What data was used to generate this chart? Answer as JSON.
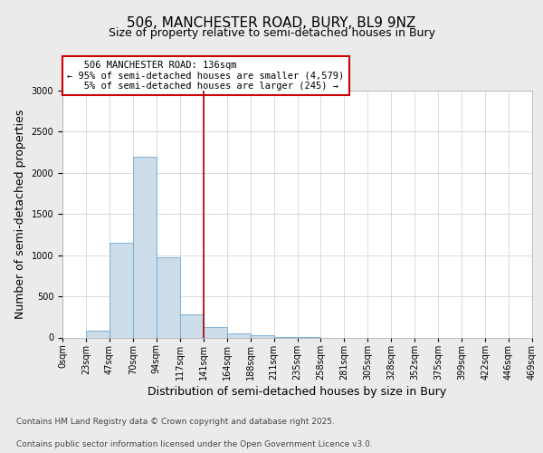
{
  "title": "506, MANCHESTER ROAD, BURY, BL9 9NZ",
  "subtitle": "Size of property relative to semi-detached houses in Bury",
  "xlabel": "Distribution of semi-detached houses by size in Bury",
  "ylabel": "Number of semi-detached properties",
  "footnote1": "Contains HM Land Registry data © Crown copyright and database right 2025.",
  "footnote2": "Contains public sector information licensed under the Open Government Licence v3.0.",
  "bin_labels": [
    "0sqm",
    "23sqm",
    "47sqm",
    "70sqm",
    "94sqm",
    "117sqm",
    "141sqm",
    "164sqm",
    "188sqm",
    "211sqm",
    "235sqm",
    "258sqm",
    "281sqm",
    "305sqm",
    "328sqm",
    "352sqm",
    "375sqm",
    "399sqm",
    "422sqm",
    "446sqm",
    "469sqm"
  ],
  "bar_heights": [
    0,
    80,
    1150,
    2200,
    970,
    280,
    130,
    55,
    25,
    10,
    5,
    0,
    0,
    0,
    0,
    0,
    0,
    0,
    0,
    0
  ],
  "bar_color": "#ccdce8",
  "bar_edge_color": "#6aaad4",
  "vline_x": 6,
  "annotation_box_color": "#cc0000",
  "vline_color": "#aa0000",
  "ylim": [
    0,
    3000
  ],
  "yticks": [
    0,
    500,
    1000,
    1500,
    2000,
    2500,
    3000
  ],
  "background_color": "#ebebeb",
  "plot_background": "#ffffff",
  "grid_color": "#cccccc",
  "title_fontsize": 11,
  "subtitle_fontsize": 9,
  "axis_label_fontsize": 9,
  "tick_fontsize": 7,
  "annotation_fontsize": 7.5,
  "footnote_fontsize": 6.5,
  "property_label": "506 MANCHESTER ROAD: 136sqm",
  "smaller_pct": 95,
  "smaller_count": 4579,
  "larger_pct": 5,
  "larger_count": 245
}
